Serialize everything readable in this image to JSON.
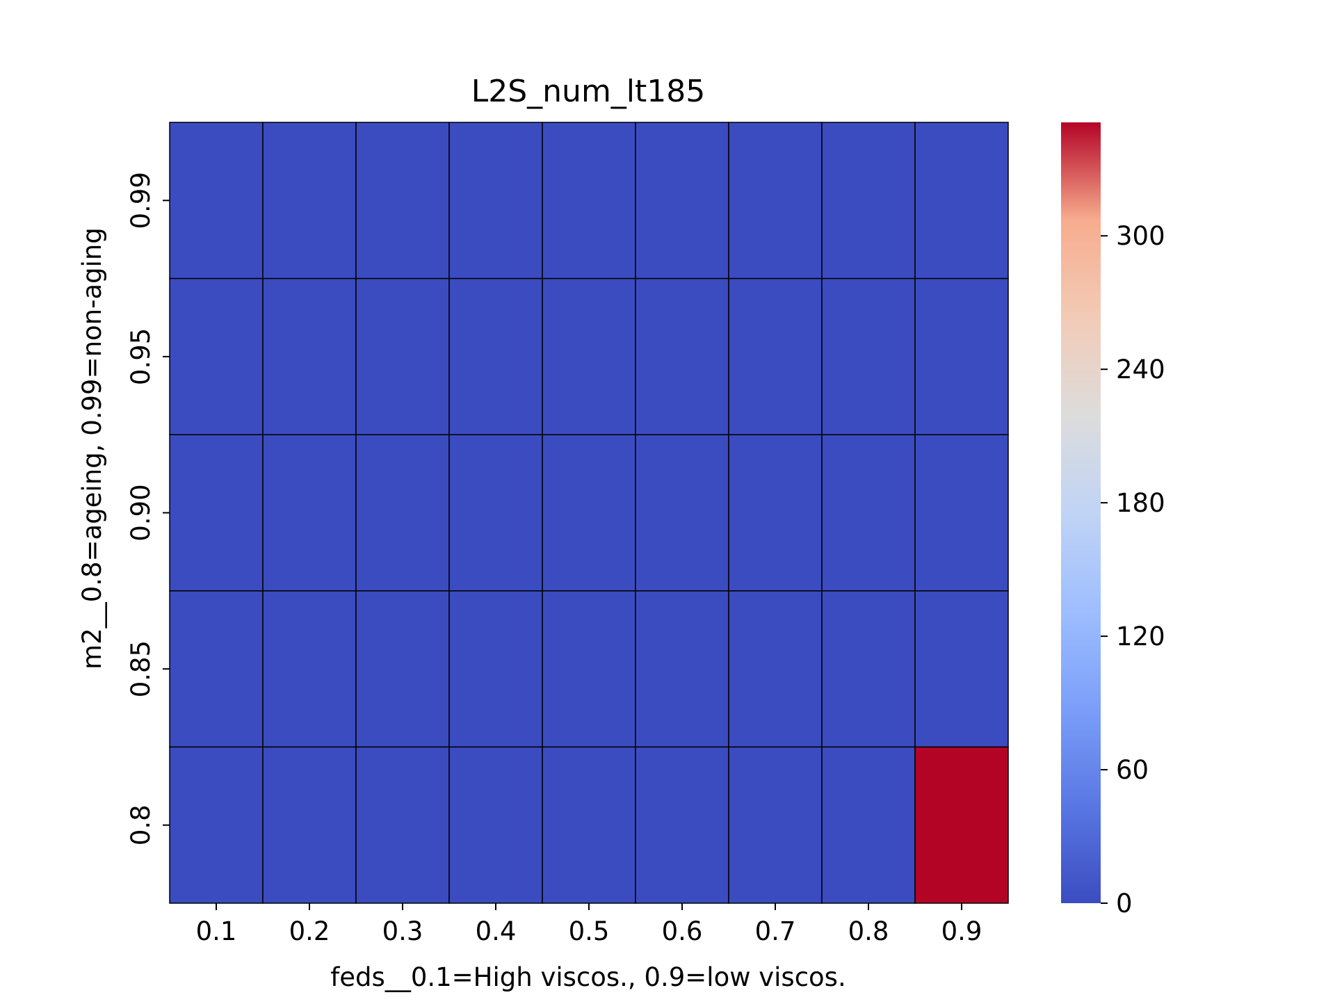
{
  "chart_data": {
    "type": "heatmap",
    "title": "L2S_num_lt185",
    "xlabel": "feds__0.1=High viscos., 0.9=low viscos.",
    "ylabel": "m2__0.8=ageing, 0.99=non-aging",
    "x_categories": [
      "0.1",
      "0.2",
      "0.3",
      "0.4",
      "0.5",
      "0.6",
      "0.7",
      "0.8",
      "0.9"
    ],
    "y_categories": [
      "0.99",
      "0.95",
      "0.90",
      "0.85",
      "0.8"
    ],
    "values": [
      [
        0,
        0,
        0,
        0,
        0,
        0,
        0,
        0,
        0
      ],
      [
        0,
        0,
        0,
        0,
        0,
        0,
        0,
        0,
        0
      ],
      [
        0,
        0,
        0,
        0,
        0,
        0,
        0,
        0,
        0
      ],
      [
        0,
        0,
        0,
        0,
        0,
        0,
        0,
        0,
        0
      ],
      [
        0,
        0,
        0,
        0,
        0,
        0,
        0,
        0,
        351
      ]
    ],
    "colormap": "coolwarm",
    "colorbar": {
      "ticks": [
        0,
        60,
        120,
        180,
        240,
        300
      ],
      "vmin": 0,
      "vmax": 351
    },
    "colors": {
      "low": "#3b4cc0",
      "high": "#b40426",
      "cell_border": "#000000"
    },
    "grid": false,
    "legend": "none"
  }
}
